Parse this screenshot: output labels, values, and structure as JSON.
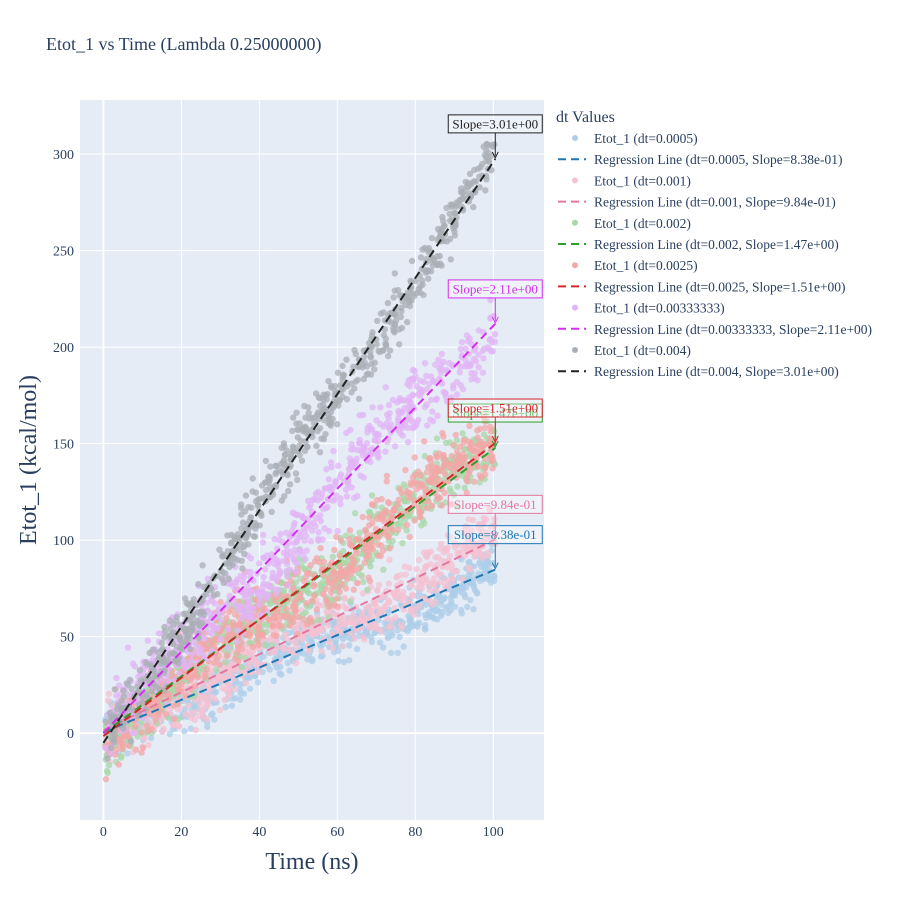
{
  "chart_data": {
    "type": "scatter",
    "title": "Etot_1 vs Time (Lambda 0.25000000)",
    "xlabel": "Time (ns)",
    "ylabel": "Etot_1 (kcal/mol)",
    "xlim": [
      -6,
      113
    ],
    "ylim": [
      -45,
      328
    ],
    "x_ticks": [
      0,
      20,
      40,
      60,
      80,
      100
    ],
    "y_ticks": [
      0,
      50,
      100,
      150,
      200,
      250,
      300
    ],
    "grid": true,
    "legend_title": "dt Values",
    "legend_placement": "right",
    "series": [
      {
        "dt": "0.0005",
        "scatter_name": "Etot_1 (dt=0.0005)",
        "line_name": "Regression Line (dt=0.0005, Slope=8.38e-01)",
        "slope": 0.838,
        "intercept": 0.5,
        "noise": 13,
        "color": "#1f77b4",
        "dot_color": "#aecde8",
        "annotation": "Slope=8.38e-01",
        "annotation_at": [
          100.5,
          84.7
        ]
      },
      {
        "dt": "0.001",
        "scatter_name": "Etot_1 (dt=0.001)",
        "line_name": "Regression Line (dt=0.001, Slope=9.84e-01)",
        "slope": 0.984,
        "intercept": 1.5,
        "noise": 14,
        "color": "#e377a0",
        "dot_color": "#f4c2d2",
        "annotation": "Slope=9.84e-01",
        "annotation_at": [
          100.5,
          100.4
        ]
      },
      {
        "dt": "0.002",
        "scatter_name": "Etot_1 (dt=0.002)",
        "line_name": "Regression Line (dt=0.002, Slope=1.47e+00)",
        "slope": 1.47,
        "intercept": 0,
        "noise": 16,
        "color": "#2ca02c",
        "dot_color": "#a8d8a8",
        "annotation": "Slope=1.47e+00",
        "annotation_at": [
          100.5,
          147.7
        ]
      },
      {
        "dt": "0.0025",
        "scatter_name": "Etot_1 (dt=0.0025)",
        "line_name": "Regression Line (dt=0.0025, Slope=1.51e+00)",
        "slope": 1.51,
        "intercept": -1.5,
        "noise": 16,
        "color": "#d62728",
        "dot_color": "#f3a7a7",
        "annotation": "Slope=1.51e+00",
        "annotation_at": [
          100.5,
          150.3
        ]
      },
      {
        "dt": "0.00333333",
        "scatter_name": "Etot_1 (dt=0.00333333)",
        "line_name": "Regression Line (dt=0.00333333, Slope=2.11e+00)",
        "slope": 2.11,
        "intercept": 0,
        "noise": 17,
        "color": "#d42ef0",
        "dot_color": "#e2b4f5",
        "annotation": "Slope=2.11e+00",
        "annotation_at": [
          100.5,
          212
        ]
      },
      {
        "dt": "0.004",
        "scatter_name": "Etot_1 (dt=0.004)",
        "line_name": "Regression Line (dt=0.004, Slope=3.01e+00)",
        "slope": 3.01,
        "intercept": -5,
        "noise": 14,
        "color": "#222222",
        "dot_color": "#a9afb6",
        "annotation": "Slope=3.01e+00",
        "annotation_at": [
          100.5,
          297.5
        ]
      }
    ]
  }
}
